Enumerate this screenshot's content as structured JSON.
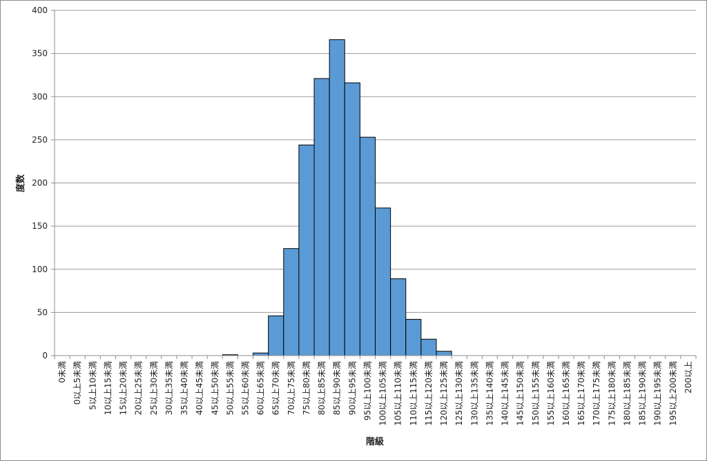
{
  "chart_data": {
    "type": "bar",
    "title": "",
    "xlabel": "階級",
    "ylabel": "度数",
    "ylim": [
      0,
      400
    ],
    "yticks": [
      0,
      50,
      100,
      150,
      200,
      250,
      300,
      350,
      400
    ],
    "grid": true,
    "bar_color": "#5b9bd5",
    "categories": [
      "0未満",
      "0以上5未満",
      "5以上10未満",
      "10以上15未満",
      "15以上20未満",
      "20以上25未満",
      "25以上30未満",
      "30以上35未満",
      "35以上40未満",
      "40以上45未満",
      "45以上50未満",
      "50以上55未満",
      "55以上60未満",
      "60以上65未満",
      "65以上70未満",
      "70以上75未満",
      "75以上80未満",
      "80以上85未満",
      "85以上90未満",
      "90以上95未満",
      "95以上100未満",
      "100以上105未満",
      "105以上110未満",
      "110以上115未満",
      "115以上120未満",
      "120以上125未満",
      "125以上130未満",
      "130以上135未満",
      "135以上140未満",
      "140以上145未満",
      "145以上150未満",
      "150以上155未満",
      "155以上160未満",
      "160以上165未満",
      "165以上170未満",
      "170以上175未満",
      "175以上180未満",
      "180以上185未満",
      "185以上190未満",
      "190以上195未満",
      "195以上200未満",
      "200以上"
    ],
    "values": [
      0,
      0,
      0,
      0,
      0,
      0,
      0,
      0,
      0,
      0,
      0,
      1,
      0,
      3,
      46,
      124,
      244,
      321,
      366,
      316,
      253,
      171,
      89,
      42,
      19,
      5,
      0,
      0,
      0,
      0,
      0,
      0,
      0,
      0,
      0,
      0,
      0,
      0,
      0,
      0,
      0,
      0
    ]
  }
}
